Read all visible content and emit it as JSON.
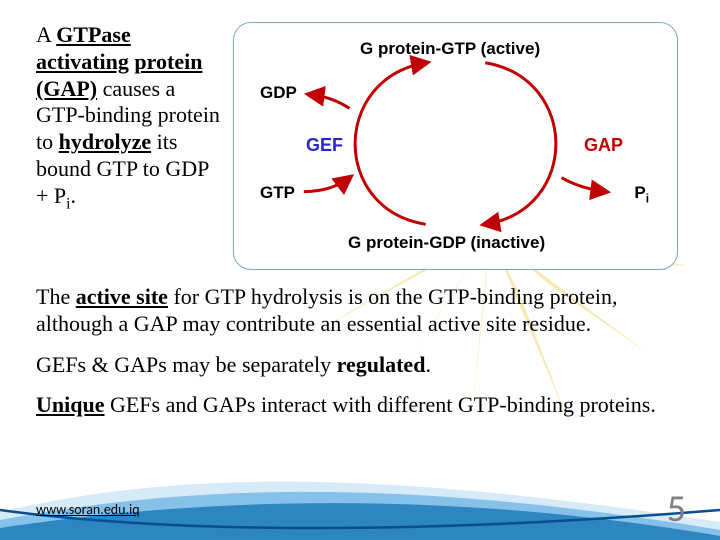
{
  "intro": {
    "html": "A <b><u>GTPase</u></b> <b><u>activating</u></b> <b><u>protein (GAP)</u></b> causes a GTP-binding protein to <b><u>hydrolyze</u></b> its bound GTP to GDP + P<sub>i</sub>."
  },
  "para1": {
    "html": "The <b><u>active site</u></b> for GTP hydrolysis is on the GTP-binding protein, although a GAP may contribute an essential active site residue."
  },
  "para2": {
    "html": "GEFs & GAPs may be separately <b>regulated</b>."
  },
  "para3": {
    "html": "<b><u>Unique</u></b> GEFs and GAPs interact with different GTP-binding proteins."
  },
  "footer": {
    "url": "www.soran.edu.iq"
  },
  "pageNumber": "5",
  "diagram": {
    "labels": {
      "top": {
        "text": "G protein-GTP (active)",
        "color": "#000000",
        "fontsize": 17
      },
      "bottom": {
        "text": "G protein-GDP (inactive)",
        "color": "#000000",
        "fontsize": 17
      },
      "gdp": {
        "text": "GDP",
        "color": "#000000",
        "fontsize": 17
      },
      "gtp": {
        "text": "GTP",
        "color": "#000000",
        "fontsize": 17
      },
      "pi": {
        "text": "P",
        "sub": "i",
        "color": "#000000",
        "fontsize": 17
      },
      "gef": {
        "text": "GEF",
        "color": "#2828c8",
        "fontsize": 18
      },
      "gap": {
        "text": "GAP",
        "color": "#c00000",
        "fontsize": 18
      }
    },
    "arrows": {
      "color": "#c00000",
      "strokeWidth": 3
    }
  },
  "style": {
    "burst_color": "#f4d97f",
    "swoosh_colors": [
      "#0a4d8c",
      "#2e86c1",
      "#85c1e9",
      "#d6eaf8"
    ]
  }
}
